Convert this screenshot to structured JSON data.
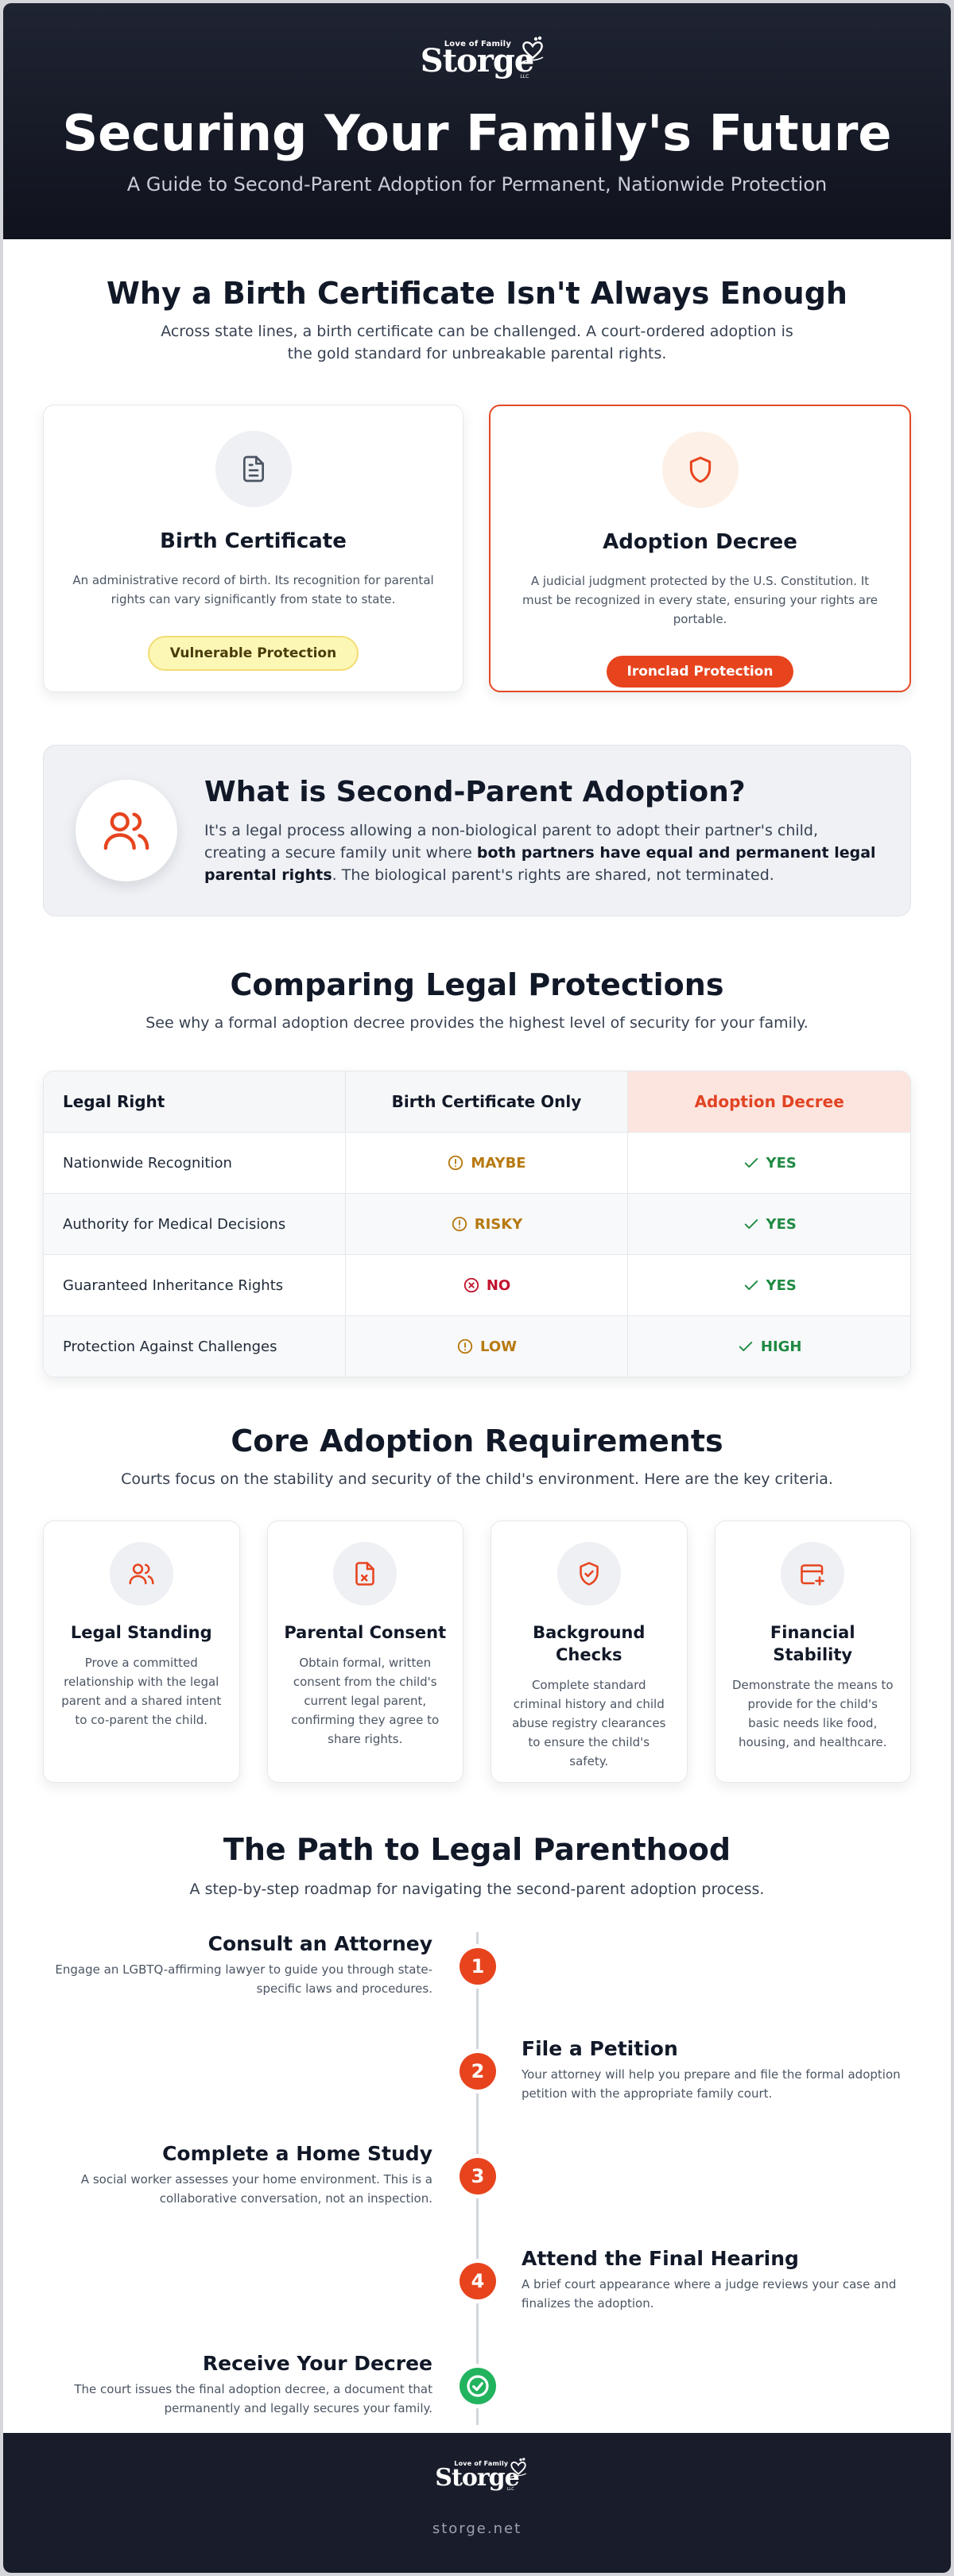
{
  "brand": {
    "tagline": "Love of Family",
    "name": "Storge",
    "suffix": "LLC",
    "site": "storge.net"
  },
  "hero": {
    "title": "Securing Your Family's Future",
    "subtitle": "A Guide to Second-Parent Adoption for Permanent, Nationwide Protection"
  },
  "why": {
    "title": "Why a Birth Certificate Isn't Always Enough",
    "subtitle": "Across state lines, a birth certificate can be challenged. A court-ordered adoption is the gold standard for unbreakable parental rights.",
    "cards": [
      {
        "icon": "document-icon",
        "title": "Birth Certificate",
        "text": "An administrative record of birth. Its recognition for parental rights can vary significantly from state to state.",
        "badge": "Vulnerable Protection"
      },
      {
        "icon": "shield-icon",
        "title": "Adoption Decree",
        "text": "A judicial judgment protected by the U.S. Constitution. It must be recognized in every state, ensuring your rights are portable.",
        "badge": "Ironclad Protection"
      }
    ]
  },
  "whatis": {
    "icon": "users-icon",
    "title": "What is Second-Parent Adoption?",
    "text_before": "It's a legal process allowing a non-biological parent to adopt their partner's child, creating a secure family unit where ",
    "text_bold": "both partners have equal and permanent legal parental rights",
    "text_after": ". The biological parent's rights are shared, not terminated."
  },
  "compare": {
    "title": "Comparing Legal Protections",
    "subtitle": "See why a formal adoption decree provides the highest level of security for your family.",
    "headers": [
      "Legal Right",
      "Birth Certificate Only",
      "Adoption Decree"
    ],
    "rows": [
      {
        "right": "Nationwide Recognition",
        "bc": "MAYBE",
        "bc_status": "warning",
        "ad": "YES"
      },
      {
        "right": "Authority for Medical Decisions",
        "bc": "RISKY",
        "bc_status": "warning",
        "ad": "YES"
      },
      {
        "right": "Guaranteed Inheritance Rights",
        "bc": "NO",
        "bc_status": "no",
        "ad": "YES"
      },
      {
        "right": "Protection Against Challenges",
        "bc": "LOW",
        "bc_status": "warning",
        "ad": "HIGH"
      }
    ]
  },
  "requirements": {
    "title": "Core Adoption Requirements",
    "subtitle": "Courts focus on the stability and security of the child's environment. Here are the key criteria.",
    "cards": [
      {
        "icon": "users-icon",
        "title": "Legal Standing",
        "text": "Prove a committed relationship with the legal parent and a shared intent to co-parent the child."
      },
      {
        "icon": "signed-file-icon",
        "title": "Parental Consent",
        "text": "Obtain formal, written consent from the child's current legal parent, confirming they agree to share rights."
      },
      {
        "icon": "shield-check-icon",
        "title": "Background Checks",
        "text": "Complete standard criminal history and child abuse registry clearances to ensure the child's safety."
      },
      {
        "icon": "card-plus-icon",
        "title": "Financial Stability",
        "text": "Demonstrate the means to provide for the child's basic needs like food, housing, and healthcare."
      }
    ]
  },
  "path": {
    "title": "The Path to Legal Parenthood",
    "subtitle": "A step-by-step roadmap for navigating the second-parent adoption process.",
    "steps": [
      {
        "num": "1",
        "title": "Consult an Attorney",
        "text": "Engage an LGBTQ-affirming lawyer to guide you through state-specific laws and procedures."
      },
      {
        "num": "2",
        "title": "File a Petition",
        "text": "Your attorney will help you prepare and file the formal adoption petition with the appropriate family court."
      },
      {
        "num": "3",
        "title": "Complete a Home Study",
        "text": "A social worker assesses your home environment. This is a collaborative conversation, not an inspection."
      },
      {
        "num": "4",
        "title": "Attend the Final Hearing",
        "text": "A brief court appearance where a judge reviews your case and finalizes the adoption."
      },
      {
        "num": "",
        "title": "Receive Your Decree",
        "text": "The court issues the final adoption decree, a document that permanently and legally secures your family."
      }
    ]
  },
  "colors": {
    "accent": "#e7441e",
    "dark": "#111827",
    "success": "#1f8a43",
    "warning": "#b7790f",
    "danger": "#c2142e"
  }
}
